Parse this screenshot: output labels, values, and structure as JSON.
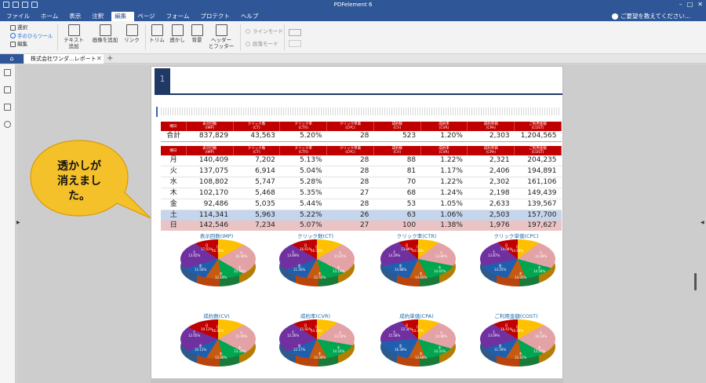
{
  "app": {
    "title": "PDFelement 6"
  },
  "menu": {
    "items": [
      "ファイル",
      "ホーム",
      "表示",
      "注釈",
      "編集",
      "ページ",
      "フォーム",
      "プロテクト",
      "ヘルプ"
    ],
    "active": "編集",
    "help_text": "ご要望を教えてください..."
  },
  "ribbon": {
    "select": "選択",
    "hand": "手のひらツール",
    "edit": "編集",
    "add_text": "テキスト\n追加",
    "add_image": "画像を追加",
    "link": "リンク",
    "trim": "トリム",
    "watermark": "透かし",
    "background": "背景",
    "header_footer": "ヘッダー\nとフッター",
    "line_mode": "ラインモード",
    "paragraph_mode": "段落モード"
  },
  "tabs": {
    "doc": "株式会社ワンダ...レポート"
  },
  "doc": {
    "section_number": "1",
    "headers": [
      {
        "label": "曜日",
        "sub": ""
      },
      {
        "label": "表示回数",
        "sub": "(IMP)"
      },
      {
        "label": "クリック数",
        "sub": "(CT)"
      },
      {
        "label": "クリック率",
        "sub": "(CTR)"
      },
      {
        "label": "クリック単価",
        "sub": "(CPC)"
      },
      {
        "label": "成約数",
        "sub": "(CV)"
      },
      {
        "label": "成約率",
        "sub": "(CVR)"
      },
      {
        "label": "成約単価",
        "sub": "(CPA)"
      },
      {
        "label": "ご利用金額",
        "sub": "(COST)"
      }
    ],
    "total_row": {
      "label": "合計",
      "values": [
        "837,829",
        "43,563",
        "5.20%",
        "28",
        "523",
        "1.20%",
        "2,303",
        "1,204,565"
      ]
    },
    "day_rows": [
      {
        "label": "月",
        "values": [
          "140,409",
          "7,202",
          "5.13%",
          "28",
          "88",
          "1.22%",
          "2,321",
          "204,235"
        ]
      },
      {
        "label": "火",
        "values": [
          "137,075",
          "6,914",
          "5.04%",
          "28",
          "81",
          "1.17%",
          "2,406",
          "194,891"
        ]
      },
      {
        "label": "水",
        "values": [
          "108,802",
          "5,747",
          "5.28%",
          "28",
          "70",
          "1.22%",
          "2,302",
          "161,106"
        ]
      },
      {
        "label": "木",
        "values": [
          "102,170",
          "5,468",
          "5.35%",
          "27",
          "68",
          "1.24%",
          "2,198",
          "149,439"
        ]
      },
      {
        "label": "金",
        "values": [
          "92,486",
          "5,035",
          "5.44%",
          "28",
          "53",
          "1.05%",
          "2,633",
          "139,567"
        ]
      },
      {
        "label": "土",
        "values": [
          "114,341",
          "5,963",
          "5.22%",
          "26",
          "63",
          "1.06%",
          "2,503",
          "157,700"
        ]
      },
      {
        "label": "日",
        "values": [
          "142,546",
          "7,234",
          "5.07%",
          "27",
          "100",
          "1.38%",
          "1,976",
          "197,627"
        ]
      }
    ],
    "pies": [
      {
        "title": "表示回数(IMP)",
        "labels": [
          "日\n17.01%",
          "月\n16.76%",
          "火\n16.36%",
          "水\n12.99%",
          "木\n12.19%",
          "金\n11.04%",
          "土\n13.65%"
        ]
      },
      {
        "title": "クリック数(CT)",
        "labels": [
          "日\n16.61%",
          "月\n16.53%",
          "火\n15.87%",
          "水\n13.19%",
          "木\n12.55%",
          "金\n11.56%",
          "土\n13.69%"
        ]
      },
      {
        "title": "クリック率(CTR)",
        "labels": [
          "日\n13.89%",
          "月\n14.04%",
          "火\n13.80%",
          "水\n14.45%",
          "木\n14.65%",
          "金\n14.88%",
          "土\n14.29%"
        ]
      },
      {
        "title": "クリック単価(CPC)",
        "labels": [
          "日\n14.08%",
          "月\n14.69%",
          "火\n14.48%",
          "水\n14.58%",
          "木\n14.05%",
          "金\n14.25%",
          "土\n13.87%"
        ]
      },
      {
        "title": "成約数(CV)",
        "labels": [
          "日\n19.12%",
          "月\n16.83%",
          "火\n15.49%",
          "水\n13.38%",
          "木\n13.00%",
          "金\n10.13%",
          "土\n12.05%"
        ]
      },
      {
        "title": "成約率(CVR)",
        "labels": [
          "日\n15.92%",
          "月\n14.16%",
          "火\n13.50%",
          "水\n14.16%",
          "木\n14.38%",
          "金\n12.17%",
          "土\n12.26%"
        ]
      },
      {
        "title": "成約単価(CPA)",
        "labels": [
          "日\n12.30%",
          "月\n14.45%",
          "火\n14.98%",
          "水\n14.33%",
          "木\n13.68%",
          "金\n16.39%",
          "土\n15.58%"
        ]
      },
      {
        "title": "ご利用金額(COST)",
        "labels": [
          "日\n16.41%",
          "月\n16.96%",
          "火\n16.18%",
          "水\n13.37%",
          "木\n12.41%",
          "金\n11.59%",
          "土\n13.09%"
        ]
      }
    ]
  },
  "callout": {
    "text": "透かしが\n消えまし\nた。"
  },
  "colors": {
    "accent": "#2f5697",
    "table_header": "#c00000",
    "sat_row": "#c5d5ec",
    "sun_row": "#eac4c4",
    "callout_fill": "#f5c12a"
  }
}
